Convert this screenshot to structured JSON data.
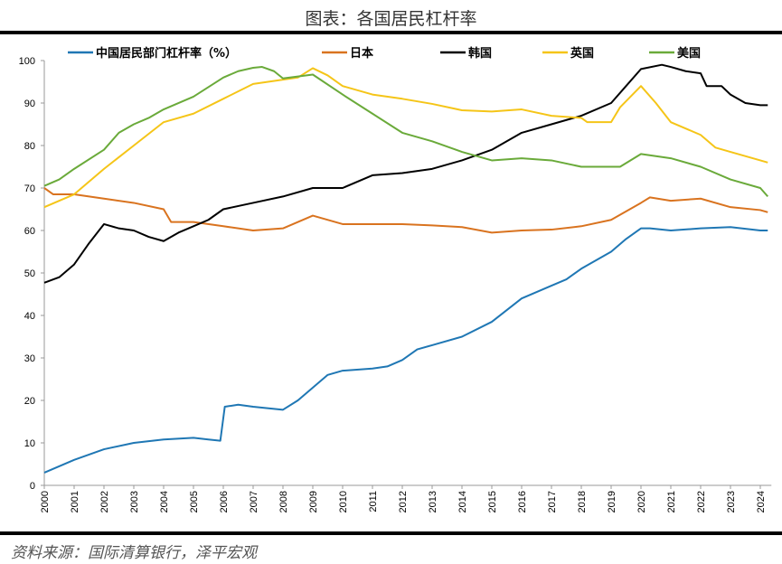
{
  "chart_data": {
    "type": "line",
    "title": "图表：各国居民杠杆率",
    "source": "资料来源：国际清算银行，泽平宏观",
    "xlabel": "",
    "ylabel": "",
    "xlim": [
      2000,
      2024.25
    ],
    "ylim": [
      0,
      100
    ],
    "yticks": [
      0,
      10,
      20,
      30,
      40,
      50,
      60,
      70,
      80,
      90,
      100
    ],
    "xticks": [
      2000,
      2001,
      2002,
      2003,
      2004,
      2005,
      2006,
      2007,
      2008,
      2009,
      2010,
      2011,
      2012,
      2013,
      2014,
      2015,
      2016,
      2017,
      2018,
      2019,
      2020,
      2021,
      2022,
      2023,
      2024
    ],
    "grid": false,
    "legend_position": "top",
    "series": [
      {
        "name": "中国居民部门杠杆率（%）",
        "color": "#1f77b4",
        "points": [
          [
            2000,
            3
          ],
          [
            2001,
            6
          ],
          [
            2002,
            8.5
          ],
          [
            2003,
            10
          ],
          [
            2004,
            10.8
          ],
          [
            2005,
            11.2
          ],
          [
            2005.5,
            10.8
          ],
          [
            2005.9,
            10.5
          ],
          [
            2006.05,
            18.5
          ],
          [
            2006.5,
            19
          ],
          [
            2007,
            18.5
          ],
          [
            2008,
            17.8
          ],
          [
            2008.5,
            20
          ],
          [
            2009,
            23
          ],
          [
            2009.5,
            26
          ],
          [
            2010,
            27
          ],
          [
            2011,
            27.5
          ],
          [
            2011.5,
            28
          ],
          [
            2012,
            29.5
          ],
          [
            2012.5,
            32
          ],
          [
            2013,
            33
          ],
          [
            2014,
            35
          ],
          [
            2015,
            38.5
          ],
          [
            2016,
            44
          ],
          [
            2017,
            47
          ],
          [
            2017.5,
            48.5
          ],
          [
            2018,
            51
          ],
          [
            2019,
            55
          ],
          [
            2019.5,
            58
          ],
          [
            2020,
            60.5
          ],
          [
            2020.3,
            60.5
          ],
          [
            2021,
            60
          ],
          [
            2022,
            60.5
          ],
          [
            2023,
            60.8
          ],
          [
            2024,
            60
          ],
          [
            2024.25,
            60
          ]
        ]
      },
      {
        "name": "日本",
        "color": "#d9731f",
        "points": [
          [
            2000,
            70
          ],
          [
            2000.3,
            68.5
          ],
          [
            2001,
            68.5
          ],
          [
            2002,
            67.5
          ],
          [
            2003,
            66.5
          ],
          [
            2004,
            65
          ],
          [
            2004.25,
            62
          ],
          [
            2005,
            62
          ],
          [
            2006,
            61
          ],
          [
            2007,
            60
          ],
          [
            2008,
            60.5
          ],
          [
            2009,
            63.5
          ],
          [
            2010,
            61.5
          ],
          [
            2011,
            61.5
          ],
          [
            2012,
            61.5
          ],
          [
            2013,
            61.2
          ],
          [
            2014,
            60.8
          ],
          [
            2015,
            59.5
          ],
          [
            2016,
            60
          ],
          [
            2017,
            60.2
          ],
          [
            2018,
            61
          ],
          [
            2019,
            62.5
          ],
          [
            2020,
            66.5
          ],
          [
            2020.3,
            67.8
          ],
          [
            2021,
            67
          ],
          [
            2022,
            67.5
          ],
          [
            2023,
            65.5
          ],
          [
            2024,
            64.8
          ],
          [
            2024.25,
            64.3
          ]
        ]
      },
      {
        "name": "韩国",
        "color": "#000000",
        "points": [
          [
            2000,
            47.7
          ],
          [
            2000.5,
            49
          ],
          [
            2001,
            52
          ],
          [
            2001.5,
            57
          ],
          [
            2002,
            61.5
          ],
          [
            2002.5,
            60.5
          ],
          [
            2003,
            60
          ],
          [
            2003.5,
            58.5
          ],
          [
            2004,
            57.5
          ],
          [
            2004.5,
            59.5
          ],
          [
            2005,
            61
          ],
          [
            2005.5,
            62.5
          ],
          [
            2006,
            65
          ],
          [
            2007,
            66.5
          ],
          [
            2008,
            68
          ],
          [
            2009,
            70
          ],
          [
            2010,
            70
          ],
          [
            2011,
            73
          ],
          [
            2012,
            73.5
          ],
          [
            2013,
            74.5
          ],
          [
            2014,
            76.5
          ],
          [
            2015,
            79
          ],
          [
            2016,
            83
          ],
          [
            2017,
            85
          ],
          [
            2018,
            87
          ],
          [
            2019,
            90
          ],
          [
            2019.5,
            94
          ],
          [
            2020,
            98
          ],
          [
            2020.7,
            99
          ],
          [
            2021,
            98.5
          ],
          [
            2021.5,
            97.5
          ],
          [
            2022,
            97
          ],
          [
            2022.2,
            94
          ],
          [
            2022.7,
            94
          ],
          [
            2023,
            92
          ],
          [
            2023.5,
            90
          ],
          [
            2024,
            89.5
          ],
          [
            2024.25,
            89.5
          ]
        ]
      },
      {
        "name": "英国",
        "color": "#f5c518",
        "points": [
          [
            2000,
            65.5
          ],
          [
            2001,
            68.5
          ],
          [
            2002,
            74.5
          ],
          [
            2003,
            80
          ],
          [
            2004,
            85.5
          ],
          [
            2005,
            87.5
          ],
          [
            2006,
            91
          ],
          [
            2007,
            94.5
          ],
          [
            2008,
            95.5
          ],
          [
            2008.5,
            96
          ],
          [
            2009,
            98.2
          ],
          [
            2009.5,
            96.5
          ],
          [
            2010,
            94
          ],
          [
            2011,
            92
          ],
          [
            2012,
            91
          ],
          [
            2013,
            89.8
          ],
          [
            2014,
            88.3
          ],
          [
            2015,
            88
          ],
          [
            2016,
            88.5
          ],
          [
            2017,
            87
          ],
          [
            2018,
            86.5
          ],
          [
            2018.2,
            85.5
          ],
          [
            2019,
            85.5
          ],
          [
            2019.3,
            89
          ],
          [
            2020,
            94
          ],
          [
            2020.5,
            90
          ],
          [
            2021,
            85.5
          ],
          [
            2022,
            82.5
          ],
          [
            2022.5,
            79.5
          ],
          [
            2023,
            78.5
          ],
          [
            2024,
            76.5
          ],
          [
            2024.25,
            76
          ]
        ]
      },
      {
        "name": "美国",
        "color": "#6aaa3a",
        "points": [
          [
            2000,
            70.5
          ],
          [
            2000.5,
            72
          ],
          [
            2001,
            74.5
          ],
          [
            2002,
            79
          ],
          [
            2002.5,
            83
          ],
          [
            2003,
            85
          ],
          [
            2003.5,
            86.5
          ],
          [
            2004,
            88.5
          ],
          [
            2005,
            91.5
          ],
          [
            2006,
            96
          ],
          [
            2006.5,
            97.5
          ],
          [
            2007,
            98.3
          ],
          [
            2007.3,
            98.5
          ],
          [
            2007.7,
            97.5
          ],
          [
            2008,
            95.8
          ],
          [
            2009,
            96.7
          ],
          [
            2010,
            92
          ],
          [
            2011,
            87.5
          ],
          [
            2012,
            83
          ],
          [
            2013,
            81
          ],
          [
            2014,
            78.5
          ],
          [
            2015,
            76.5
          ],
          [
            2016,
            77
          ],
          [
            2017,
            76.5
          ],
          [
            2018,
            75
          ],
          [
            2019,
            75
          ],
          [
            2019.3,
            75
          ],
          [
            2020,
            78
          ],
          [
            2021,
            77
          ],
          [
            2022,
            75
          ],
          [
            2023,
            72
          ],
          [
            2024,
            70
          ],
          [
            2024.25,
            68
          ]
        ]
      }
    ]
  }
}
